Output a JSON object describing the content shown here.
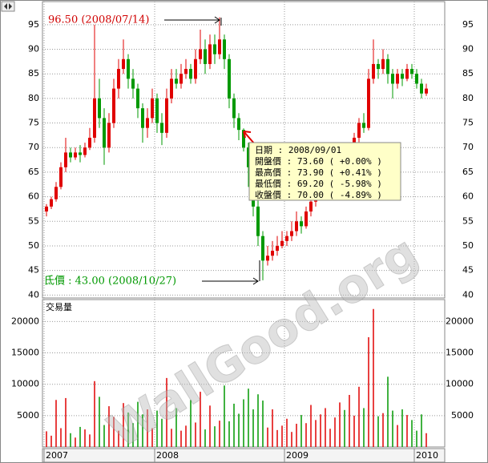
{
  "watermark": "WallGood.org",
  "chart_data": [
    {
      "type": "candlestick",
      "categories": [
        "2007",
        null,
        null,
        null,
        null,
        null,
        null,
        null,
        null,
        null,
        null,
        null,
        null,
        null,
        null,
        null,
        null,
        null,
        null,
        null,
        null,
        null,
        null,
        "2008",
        null,
        null,
        null,
        null,
        null,
        null,
        null,
        null,
        null,
        null,
        null,
        null,
        null,
        null,
        null,
        null,
        null,
        null,
        null,
        null,
        null,
        null,
        null,
        null,
        null,
        null,
        "2009",
        null,
        null,
        null,
        null,
        null,
        null,
        null,
        null,
        null,
        null,
        null,
        null,
        null,
        null,
        null,
        null,
        null,
        null,
        null,
        null,
        null,
        null,
        null,
        null,
        null,
        null,
        "2010",
        null,
        null
      ],
      "series": [
        {
          "values": [
            [
              57,
              58.5,
              56,
              58
            ],
            [
              58,
              60,
              57.5,
              59.5
            ],
            [
              59.5,
              63,
              59,
              62
            ],
            [
              62,
              67,
              61.5,
              66
            ],
            [
              66,
              72,
              65,
              69
            ],
            [
              69,
              70,
              67,
              68
            ],
            [
              68,
              70,
              67.5,
              69
            ],
            [
              69,
              70.5,
              67,
              68.5
            ],
            [
              68.5,
              71,
              68,
              70
            ],
            [
              70,
              74,
              69.5,
              72
            ],
            [
              72,
              95,
              71,
              80
            ],
            [
              80,
              84,
              74,
              76
            ],
            [
              76,
              78,
              66.5,
              70
            ],
            [
              70,
              77,
              69,
              75
            ],
            [
              75,
              84,
              74,
              82
            ],
            [
              82,
              88,
              80,
              86
            ],
            [
              86,
              92,
              85,
              88
            ],
            [
              88,
              89,
              82,
              84
            ],
            [
              84,
              86,
              80,
              82
            ],
            [
              82,
              83,
              76,
              78
            ],
            [
              78,
              79,
              71,
              74
            ],
            [
              74,
              78,
              72,
              76
            ],
            [
              76,
              82,
              75,
              80
            ],
            [
              80,
              81,
              73,
              75
            ],
            [
              75,
              77,
              70.5,
              73
            ],
            [
              73,
              82,
              72,
              80
            ],
            [
              80,
              86,
              79,
              84
            ],
            [
              84,
              86,
              82,
              83
            ],
            [
              83,
              87,
              82,
              85
            ],
            [
              85,
              88,
              84,
              86
            ],
            [
              86,
              87,
              83,
              84
            ],
            [
              84,
              90,
              83,
              88
            ],
            [
              88,
              94,
              87,
              90
            ],
            [
              90,
              92,
              85,
              87
            ],
            [
              87,
              93,
              86,
              91
            ],
            [
              91,
              93,
              87,
              89
            ],
            [
              89,
              96.5,
              88,
              92
            ],
            [
              92,
              93,
              86,
              88
            ],
            [
              88,
              89,
              78,
              80
            ],
            [
              80,
              81,
              74,
              76
            ],
            [
              76,
              77,
              71.5,
              73.6
            ],
            [
              73.6,
              73.9,
              69.2,
              70
            ],
            [
              70,
              71,
              62,
              66
            ],
            [
              66,
              67,
              56,
              58
            ],
            [
              58,
              60,
              50,
              52
            ],
            [
              52,
              53,
              43,
              47
            ],
            [
              47,
              50,
              46,
              48
            ],
            [
              48,
              51,
              47,
              49
            ],
            [
              49,
              52,
              48,
              50
            ],
            [
              50,
              53,
              49.5,
              51
            ],
            [
              51,
              53,
              50,
              52
            ],
            [
              52,
              55,
              51,
              53
            ],
            [
              53,
              57,
              52,
              55
            ],
            [
              55,
              56,
              52.5,
              54
            ],
            [
              54,
              58,
              53.5,
              57
            ],
            [
              57,
              60,
              56,
              59
            ],
            [
              59,
              62,
              58,
              60
            ],
            [
              60,
              63,
              59.5,
              62
            ],
            [
              62,
              65,
              61,
              64
            ],
            [
              64,
              67,
              63,
              66
            ],
            [
              66,
              68,
              65,
              67
            ],
            [
              67,
              69,
              66,
              68
            ],
            [
              68,
              69,
              66,
              67
            ],
            [
              67,
              70,
              66.5,
              69
            ],
            [
              69,
              73,
              68,
              72
            ],
            [
              72,
              76,
              71,
              75
            ],
            [
              75,
              77,
              73,
              74
            ],
            [
              74,
              86,
              73.5,
              84
            ],
            [
              84,
              92,
              83,
              87
            ],
            [
              87,
              88,
              84,
              86
            ],
            [
              86,
              90,
              85,
              88
            ],
            [
              88,
              89,
              83,
              85
            ],
            [
              85,
              86,
              80,
              83
            ],
            [
              83,
              86,
              82,
              85
            ],
            [
              85,
              86,
              82.5,
              84
            ],
            [
              84,
              87,
              83.5,
              86
            ],
            [
              86,
              87,
              84,
              85
            ],
            [
              85,
              86,
              82,
              83
            ],
            [
              83,
              84,
              80,
              81
            ],
            [
              81,
              83,
              80.5,
              82
            ]
          ]
        }
      ],
      "up_color": "#e00000",
      "down_color": "#009900",
      "ylim": [
        39.4,
        99.7
      ],
      "yticks": [
        40,
        45,
        50,
        55,
        60,
        65,
        70,
        75,
        80,
        85,
        90,
        95
      ],
      "grid": true,
      "annotations": [
        "96.50 (2008/07/14)",
        "氐價 : 43.00 (2008/10/27)"
      ],
      "tooltip": [
        "日期 : 2008/09/01",
        "開盤價 : 73.60 ( +0.00% )",
        "最高價 : 73.90 ( +0.41% )",
        "最低價 : 69.20 ( -5.98% )",
        "收盤價 : 70.00 ( -4.89% )"
      ]
    },
    {
      "type": "bar",
      "title": "交易量",
      "values": [
        2500,
        1800,
        7500,
        3000,
        7800,
        2200,
        1500,
        3200,
        2800,
        2000,
        10500,
        8000,
        3500,
        6500,
        4800,
        2600,
        7000,
        5500,
        3800,
        7200,
        5200,
        6000,
        3000,
        5800,
        4500,
        11000,
        2900,
        6200,
        2600,
        3400,
        7500,
        3900,
        8800,
        2800,
        6600,
        3300,
        4200,
        9800,
        4100,
        6900,
        5300,
        7600,
        9300,
        6000,
        8400,
        7400,
        3100,
        6000,
        2700,
        3400,
        4500,
        2400,
        3700,
        5100,
        3800,
        6700,
        4300,
        5200,
        6200,
        2900,
        4700,
        7100,
        5900,
        8300,
        5000,
        9600,
        6200,
        17500,
        22000,
        4900,
        5400,
        11200,
        5800,
        3500,
        6000,
        5100,
        4300,
        2600,
        5200,
        2200
      ],
      "ylim": [
        0,
        23500
      ],
      "yticks": [
        5000,
        10000,
        15000,
        20000
      ],
      "grid": true
    }
  ]
}
